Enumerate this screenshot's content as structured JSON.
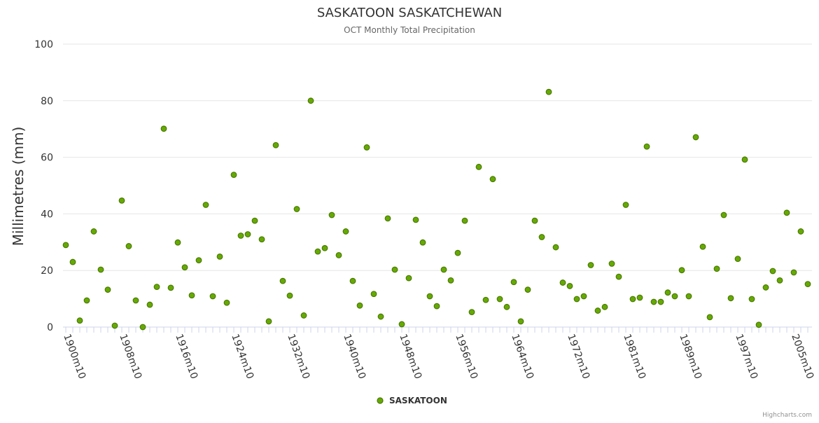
{
  "chart_data": {
    "type": "scatter",
    "title": "SASKATOON SASKATCHEWAN",
    "subtitle": "OCT Monthly Total Precipitation",
    "xlabel": "",
    "ylabel": "Millimetres (mm)",
    "ylim": [
      0,
      100
    ],
    "yticks": [
      0,
      20,
      40,
      60,
      80,
      100
    ],
    "x_tick_labels": [
      "1900m10",
      "1908m10",
      "1916m10",
      "1924m10",
      "1932m10",
      "1940m10",
      "1948m10",
      "1956m10",
      "1964m10",
      "1972m10",
      "1981m10",
      "1989m10",
      "1997m10",
      "2005m10"
    ],
    "x_tick_indices": [
      0,
      8,
      16,
      24,
      32,
      40,
      48,
      56,
      64,
      72,
      80,
      88,
      96,
      104
    ],
    "point_color": "#66aa00",
    "point_border": "#4a7a00",
    "grid": true,
    "legend": "bottom-center",
    "series": [
      {
        "name": "SASKATOON",
        "values": [
          29.0,
          23.0,
          2.3,
          9.4,
          33.8,
          20.3,
          13.2,
          0.5,
          44.7,
          28.6,
          9.4,
          0.0,
          7.9,
          14.2,
          70.1,
          13.9,
          29.9,
          21.1,
          11.2,
          23.6,
          43.2,
          10.9,
          24.9,
          8.6,
          53.8,
          32.3,
          32.8,
          37.6,
          31.0,
          2.0,
          64.3,
          16.3,
          11.1,
          41.7,
          4.1,
          80.0,
          26.7,
          27.9,
          39.6,
          25.4,
          33.8,
          16.3,
          7.6,
          63.5,
          11.7,
          3.7,
          38.4,
          20.3,
          1.0,
          17.3,
          37.9,
          29.9,
          10.9,
          7.4,
          20.3,
          16.5,
          26.2,
          37.6,
          5.3,
          56.6,
          9.6,
          52.3,
          9.9,
          7.1,
          15.9,
          2.0,
          13.2,
          37.6,
          31.8,
          83.1,
          28.2,
          15.7,
          14.5,
          9.9,
          10.9,
          21.9,
          5.8,
          7.1,
          22.4,
          17.8,
          43.2,
          9.9,
          10.4,
          63.8,
          8.9,
          8.9,
          12.2,
          10.9,
          20.1,
          10.9,
          67.1,
          28.4,
          3.5,
          20.6,
          39.6,
          10.2,
          24.1,
          59.2,
          9.9,
          0.8,
          14.0,
          19.8,
          16.5,
          40.4,
          19.3,
          33.8,
          15.2
        ]
      }
    ]
  },
  "credits": "Highcharts.com"
}
